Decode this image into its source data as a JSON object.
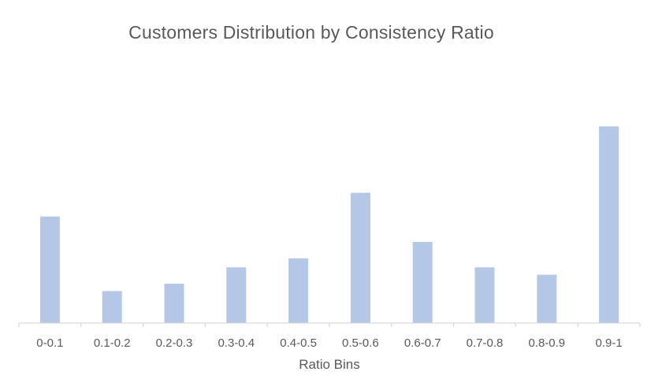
{
  "chart_data": {
    "type": "bar",
    "title": "Customers Distribution by Consistency Ratio",
    "xlabel": "Ratio Bins",
    "ylabel": "",
    "categories": [
      "0-0.1",
      "0.1-0.2",
      "0.2-0.3",
      "0.3-0.4",
      "0.4-0.5",
      "0.5-0.6",
      "0.6-0.7",
      "0.7-0.8",
      "0.8-0.9",
      "0.9-1"
    ],
    "values": [
      13,
      3.9,
      4.8,
      6.8,
      7.9,
      15.9,
      9.9,
      6.8,
      5.9,
      24
    ],
    "ylim": [
      0,
      25
    ],
    "grid": false,
    "bar_color": "#b4c7e7",
    "axis_color": "#d9d9d9",
    "text_color": "#595959"
  }
}
